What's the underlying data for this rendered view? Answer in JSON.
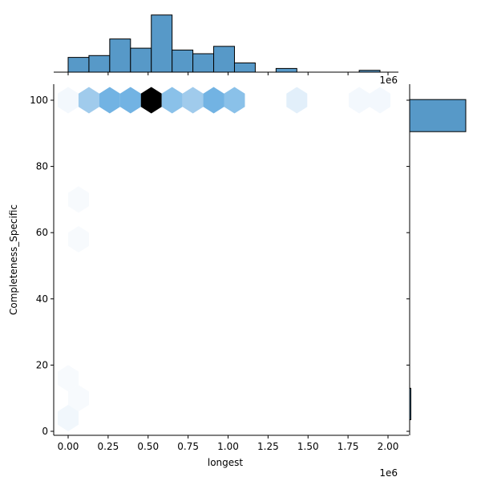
{
  "chart_data": {
    "type": "hexbin",
    "kind": "jointplot",
    "title": "",
    "xlabel": "longest",
    "ylabel": "Completeness_Specific",
    "x_offset_label": "1e6",
    "top_offset_label": "1e6",
    "xlim": [
      -0.1,
      2.05
    ],
    "ylim": [
      -1,
      105
    ],
    "x_ticks": [
      0.0,
      0.25,
      0.5,
      0.75,
      1.0,
      1.25,
      1.5,
      1.75,
      2.0
    ],
    "x_tick_labels": [
      "0.00",
      "0.25",
      "0.50",
      "0.75",
      "1.00",
      "1.25",
      "1.50",
      "1.75",
      "2.00"
    ],
    "y_ticks": [
      0,
      20,
      40,
      60,
      80,
      100
    ],
    "y_tick_labels": [
      "0",
      "20",
      "40",
      "60",
      "80",
      "100"
    ],
    "colors": {
      "bar_fill": "#5799c8",
      "bar_edge": "#000000",
      "hex_max": "#000000"
    },
    "hexbins": [
      {
        "x": 0.0,
        "y": 100,
        "color": "#f3f8fd"
      },
      {
        "x": 0.13,
        "y": 100,
        "color": "#a0cbec"
      },
      {
        "x": 0.26,
        "y": 100,
        "color": "#72b3e3"
      },
      {
        "x": 0.39,
        "y": 100,
        "color": "#72b3e3"
      },
      {
        "x": 0.52,
        "y": 100,
        "color": "#000000"
      },
      {
        "x": 0.65,
        "y": 100,
        "color": "#8ac1e9"
      },
      {
        "x": 0.78,
        "y": 100,
        "color": "#a0cbec"
      },
      {
        "x": 0.91,
        "y": 100,
        "color": "#72b3e3"
      },
      {
        "x": 1.04,
        "y": 100,
        "color": "#8ac1e9"
      },
      {
        "x": 1.43,
        "y": 100,
        "color": "#e2effa"
      },
      {
        "x": 1.82,
        "y": 100,
        "color": "#f3f8fd"
      },
      {
        "x": 1.95,
        "y": 100,
        "color": "#f3f8fd"
      },
      {
        "x": 0.065,
        "y": 70,
        "color": "#f7fafd"
      },
      {
        "x": 0.065,
        "y": 58,
        "color": "#f7fafd"
      },
      {
        "x": 0.0,
        "y": 16,
        "color": "#f7fafd"
      },
      {
        "x": 0.065,
        "y": 10,
        "color": "#f7fafd"
      },
      {
        "x": 0.0,
        "y": 4,
        "color": "#f1f7fc"
      }
    ],
    "marginal_x_hist": {
      "bin_width": 0.13,
      "bins_start": [
        0.0,
        0.13,
        0.26,
        0.39,
        0.52,
        0.65,
        0.78,
        0.91,
        1.04,
        1.3,
        1.82
      ],
      "counts": [
        8,
        9,
        18,
        13,
        31,
        12,
        10,
        14,
        5,
        2,
        1
      ]
    },
    "marginal_y_hist": {
      "bins": [
        [
          90.5,
          100.2
        ],
        [
          3.5,
          13.0
        ]
      ],
      "counts": [
        97,
        1
      ]
    }
  }
}
